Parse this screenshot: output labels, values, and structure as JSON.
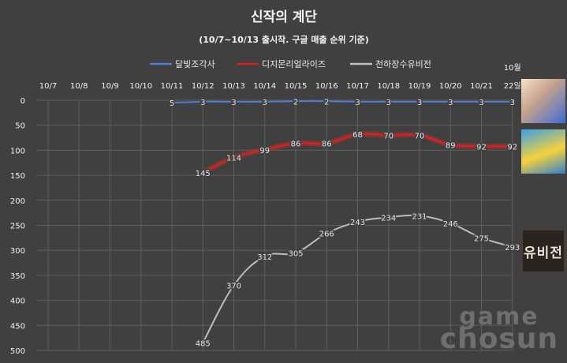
{
  "chart_data": {
    "type": "line",
    "title": "신작의 계단",
    "subtitle": "(10/7~10/13 출시작. 구글 매출 순위 기준)",
    "categories": [
      "10/7",
      "10/8",
      "10/9",
      "10/10",
      "10/11",
      "10/12",
      "10/13",
      "10/14",
      "10/15",
      "10/16",
      "10/17",
      "10/18",
      "10/19",
      "10/20",
      "10/21",
      "10월 22일"
    ],
    "y_ticks": [
      0,
      50,
      100,
      150,
      200,
      250,
      300,
      350,
      400,
      450,
      500
    ],
    "ylim": [
      0,
      500
    ],
    "y_reversed": true,
    "grid": true,
    "legend_position": "top",
    "series": [
      {
        "name": "달빛조각사",
        "color": "#4f7dd6",
        "values": [
          null,
          null,
          null,
          null,
          5,
          3,
          3,
          3,
          2,
          2,
          3,
          3,
          3,
          3,
          3,
          3
        ]
      },
      {
        "name": "디지몬리얼라이즈",
        "color": "#e21b1b",
        "values": [
          null,
          null,
          null,
          null,
          null,
          145,
          114,
          99,
          86,
          86,
          68,
          70,
          70,
          89,
          92,
          92
        ]
      },
      {
        "name": "천하장수유비전",
        "color": "#bdbdbd",
        "values": [
          null,
          null,
          null,
          null,
          null,
          485,
          370,
          312,
          305,
          266,
          243,
          234,
          231,
          246,
          275,
          293
        ]
      }
    ]
  },
  "icons": [
    {
      "name": "moonlight-sculptor-icon"
    },
    {
      "name": "digimon-realize-icon"
    },
    {
      "name": "yubijeon-logo-icon",
      "text": "유비전"
    }
  ],
  "watermark": {
    "line1": "game",
    "line2": "chosun"
  }
}
